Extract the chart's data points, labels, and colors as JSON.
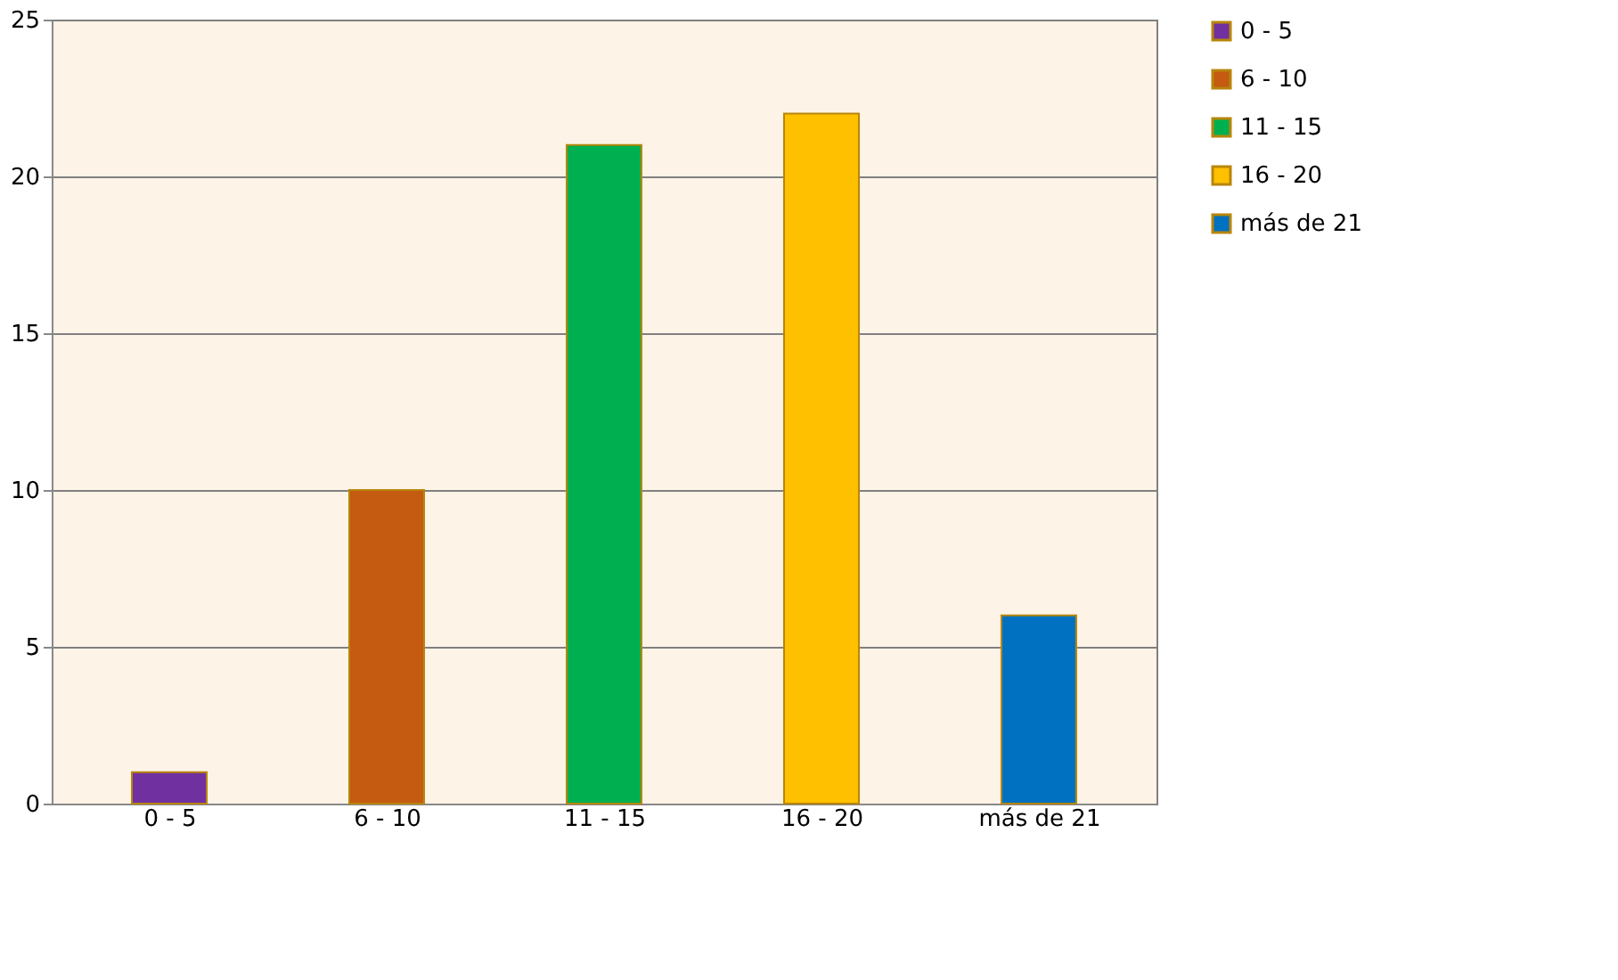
{
  "chart_data": {
    "type": "bar",
    "categories": [
      "0 - 5",
      "6 - 10",
      "11 - 15",
      "16 - 20",
      "más de 21"
    ],
    "series": [
      {
        "name": "0 - 5",
        "color": "#7030a0",
        "values": [
          1,
          null,
          null,
          null,
          null
        ]
      },
      {
        "name": "6 - 10",
        "color": "#c55a11",
        "values": [
          null,
          10,
          null,
          null,
          null
        ]
      },
      {
        "name": "11 - 15",
        "color": "#00b050",
        "values": [
          null,
          null,
          21,
          null,
          null
        ]
      },
      {
        "name": "16 - 20",
        "color": "#ffc000",
        "values": [
          null,
          null,
          null,
          22,
          null
        ]
      },
      {
        "name": "más de 21",
        "color": "#0070c0",
        "values": [
          null,
          null,
          null,
          null,
          6
        ]
      }
    ],
    "ylim": [
      0,
      25
    ],
    "yticks": [
      0,
      5,
      10,
      15,
      20,
      25
    ],
    "grid": "y",
    "legend": "right"
  }
}
